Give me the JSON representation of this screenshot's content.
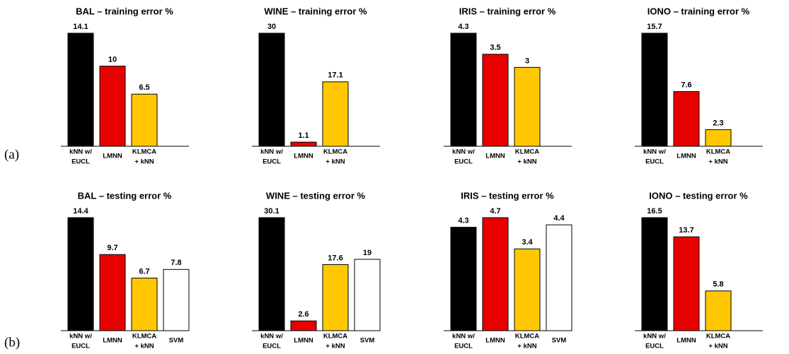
{
  "panel_labels": [
    "(a)",
    "(b)"
  ],
  "chart_data": [
    {
      "type": "bar",
      "title": "BAL – training error %",
      "categories": [
        [
          "kNN w/",
          "EUCL"
        ],
        [
          "LMNN"
        ],
        [
          "KLMCA",
          "+ kNN"
        ],
        null
      ],
      "values": [
        14.1,
        10,
        6.5,
        null
      ],
      "colors": [
        "#000000",
        "#e60000",
        "#ffc800",
        "#ffffff"
      ],
      "ylim": [
        0,
        14.1
      ]
    },
    {
      "type": "bar",
      "title": "WINE – training error %",
      "categories": [
        [
          "kNN w/",
          "EUCL"
        ],
        [
          "LMNN"
        ],
        [
          "KLMCA",
          "+ kNN"
        ],
        null
      ],
      "values": [
        30,
        1.1,
        17.1,
        null
      ],
      "colors": [
        "#000000",
        "#e60000",
        "#ffc800",
        "#ffffff"
      ],
      "ylim": [
        0,
        30
      ]
    },
    {
      "type": "bar",
      "title": "IRIS – training error %",
      "categories": [
        [
          "kNN w/",
          "EUCL"
        ],
        [
          "LMNN"
        ],
        [
          "KLMCA",
          "+ kNN"
        ],
        null
      ],
      "values": [
        4.3,
        3.5,
        3,
        null
      ],
      "colors": [
        "#000000",
        "#e60000",
        "#ffc800",
        "#ffffff"
      ],
      "ylim": [
        0,
        4.3
      ]
    },
    {
      "type": "bar",
      "title": "IONO – training error %",
      "categories": [
        [
          "kNN w/",
          "EUCL"
        ],
        [
          "LMNN"
        ],
        [
          "KLMCA",
          "+ kNN"
        ],
        null
      ],
      "values": [
        15.7,
        7.6,
        2.3,
        null
      ],
      "colors": [
        "#000000",
        "#e60000",
        "#ffc800",
        "#ffffff"
      ],
      "ylim": [
        0,
        15.7
      ]
    },
    {
      "type": "bar",
      "title": "BAL – testing error %",
      "categories": [
        [
          "kNN w/",
          "EUCL"
        ],
        [
          "LMNN"
        ],
        [
          "KLMCA",
          "+ kNN"
        ],
        [
          "SVM"
        ]
      ],
      "values": [
        14.4,
        9.7,
        6.7,
        7.8
      ],
      "colors": [
        "#000000",
        "#e60000",
        "#ffc800",
        "#ffffff"
      ],
      "ylim": [
        0,
        14.4
      ]
    },
    {
      "type": "bar",
      "title": "WINE – testing error %",
      "categories": [
        [
          "kNN w/",
          "EUCL"
        ],
        [
          "LMNN"
        ],
        [
          "KLMCA",
          "+ kNN"
        ],
        [
          "SVM"
        ]
      ],
      "values": [
        30.1,
        2.6,
        17.6,
        19
      ],
      "colors": [
        "#000000",
        "#e60000",
        "#ffc800",
        "#ffffff"
      ],
      "ylim": [
        0,
        30.1
      ]
    },
    {
      "type": "bar",
      "title": "IRIS – testing error %",
      "categories": [
        [
          "kNN w/",
          "EUCL"
        ],
        [
          "LMNN"
        ],
        [
          "KLMCA",
          "+ kNN"
        ],
        [
          "SVM"
        ]
      ],
      "values": [
        4.3,
        4.7,
        3.4,
        4.4
      ],
      "colors": [
        "#000000",
        "#e60000",
        "#ffc800",
        "#ffffff"
      ],
      "ylim": [
        0,
        4.7
      ]
    },
    {
      "type": "bar",
      "title": "IONO – testing error %",
      "categories": [
        [
          "kNN w/",
          "EUCL"
        ],
        [
          "LMNN"
        ],
        [
          "KLMCA",
          "+ kNN"
        ],
        null
      ],
      "values": [
        16.5,
        13.7,
        5.8,
        null
      ],
      "colors": [
        "#000000",
        "#e60000",
        "#ffc800",
        "#ffffff"
      ],
      "ylim": [
        0,
        16.5
      ]
    }
  ]
}
